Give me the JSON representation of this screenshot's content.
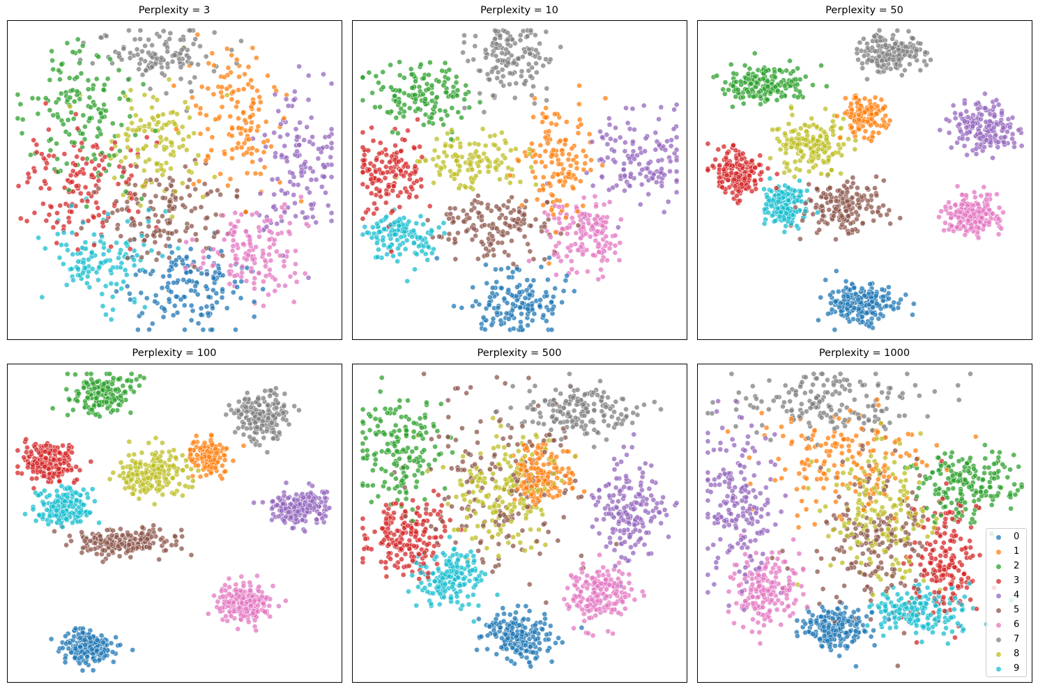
{
  "chart_data": {
    "type": "scatter",
    "figure_title": "",
    "layout": {
      "rows": 2,
      "cols": 3,
      "axes_ticks": false,
      "grid": false
    },
    "legend": {
      "position": "lower right (last panel)",
      "entries": [
        "0",
        "1",
        "2",
        "3",
        "4",
        "5",
        "6",
        "7",
        "8",
        "9"
      ]
    },
    "colors": {
      "0": "#1f77b4",
      "1": "#ff7f0e",
      "2": "#2ca02c",
      "3": "#d62728",
      "4": "#9467bd",
      "5": "#8c564b",
      "6": "#e377c2",
      "7": "#7f7f7f",
      "8": "#bcbd22",
      "9": "#17becf"
    },
    "note": "Cluster centers given in normalized axes coordinates [x, y] with y measured from top; spread is approximate std-dev (fraction of axes); n is approximate point count.",
    "panels": [
      {
        "title": "Perplexity = 3",
        "clusters": [
          {
            "label": "0",
            "center": [
              0.53,
              0.84
            ],
            "spread": [
              0.09,
              0.07
            ],
            "n": 140
          },
          {
            "label": "1",
            "center": [
              0.69,
              0.3
            ],
            "spread": [
              0.07,
              0.11
            ],
            "n": 130
          },
          {
            "label": "2",
            "center": [
              0.22,
              0.3
            ],
            "spread": [
              0.09,
              0.11
            ],
            "n": 140
          },
          {
            "label": "3",
            "center": [
              0.22,
              0.53
            ],
            "spread": [
              0.09,
              0.09
            ],
            "n": 140
          },
          {
            "label": "4",
            "center": [
              0.87,
              0.45
            ],
            "spread": [
              0.07,
              0.13
            ],
            "n": 130
          },
          {
            "label": "5",
            "center": [
              0.47,
              0.6
            ],
            "spread": [
              0.09,
              0.07
            ],
            "n": 140
          },
          {
            "label": "6",
            "center": [
              0.74,
              0.72
            ],
            "spread": [
              0.09,
              0.07
            ],
            "n": 140
          },
          {
            "label": "7",
            "center": [
              0.45,
              0.11
            ],
            "spread": [
              0.09,
              0.05
            ],
            "n": 120
          },
          {
            "label": "8",
            "center": [
              0.45,
              0.38
            ],
            "spread": [
              0.07,
              0.09
            ],
            "n": 120
          },
          {
            "label": "9",
            "center": [
              0.28,
              0.74
            ],
            "spread": [
              0.07,
              0.07
            ],
            "n": 120
          }
        ]
      },
      {
        "title": "Perplexity = 10",
        "clusters": [
          {
            "label": "0",
            "center": [
              0.48,
              0.88
            ],
            "spread": [
              0.07,
              0.05
            ],
            "n": 150
          },
          {
            "label": "1",
            "center": [
              0.61,
              0.43
            ],
            "spread": [
              0.05,
              0.09
            ],
            "n": 130
          },
          {
            "label": "2",
            "center": [
              0.2,
              0.24
            ],
            "spread": [
              0.08,
              0.05
            ],
            "n": 140
          },
          {
            "label": "3",
            "center": [
              0.11,
              0.48
            ],
            "spread": [
              0.06,
              0.07
            ],
            "n": 140
          },
          {
            "label": "4",
            "center": [
              0.86,
              0.43
            ],
            "spread": [
              0.08,
              0.07
            ],
            "n": 130
          },
          {
            "label": "5",
            "center": [
              0.42,
              0.64
            ],
            "spread": [
              0.09,
              0.05
            ],
            "n": 140
          },
          {
            "label": "6",
            "center": [
              0.7,
              0.67
            ],
            "spread": [
              0.06,
              0.06
            ],
            "n": 140
          },
          {
            "label": "7",
            "center": [
              0.47,
              0.12
            ],
            "spread": [
              0.06,
              0.06
            ],
            "n": 140
          },
          {
            "label": "8",
            "center": [
              0.36,
              0.44
            ],
            "spread": [
              0.08,
              0.04
            ],
            "n": 120
          },
          {
            "label": "9",
            "center": [
              0.14,
              0.68
            ],
            "spread": [
              0.06,
              0.04
            ],
            "n": 120
          }
        ]
      },
      {
        "title": "Perplexity = 50",
        "clusters": [
          {
            "label": "0",
            "center": [
              0.49,
              0.89
            ],
            "spread": [
              0.05,
              0.03
            ],
            "n": 200
          },
          {
            "label": "1",
            "center": [
              0.5,
              0.3
            ],
            "spread": [
              0.03,
              0.03
            ],
            "n": 130
          },
          {
            "label": "2",
            "center": [
              0.2,
              0.2
            ],
            "spread": [
              0.06,
              0.03
            ],
            "n": 170
          },
          {
            "label": "3",
            "center": [
              0.12,
              0.48
            ],
            "spread": [
              0.04,
              0.04
            ],
            "n": 180
          },
          {
            "label": "4",
            "center": [
              0.86,
              0.34
            ],
            "spread": [
              0.05,
              0.04
            ],
            "n": 170
          },
          {
            "label": "5",
            "center": [
              0.44,
              0.58
            ],
            "spread": [
              0.06,
              0.04
            ],
            "n": 170
          },
          {
            "label": "6",
            "center": [
              0.82,
              0.61
            ],
            "spread": [
              0.04,
              0.03
            ],
            "n": 190
          },
          {
            "label": "7",
            "center": [
              0.58,
              0.1
            ],
            "spread": [
              0.05,
              0.03
            ],
            "n": 180
          },
          {
            "label": "8",
            "center": [
              0.34,
              0.39
            ],
            "spread": [
              0.05,
              0.04
            ],
            "n": 170
          },
          {
            "label": "9",
            "center": [
              0.26,
              0.58
            ],
            "spread": [
              0.03,
              0.03
            ],
            "n": 170
          }
        ]
      },
      {
        "title": "Perplexity = 100",
        "clusters": [
          {
            "label": "0",
            "center": [
              0.24,
              0.89
            ],
            "spread": [
              0.04,
              0.025
            ],
            "n": 220
          },
          {
            "label": "1",
            "center": [
              0.6,
              0.29
            ],
            "spread": [
              0.03,
              0.03
            ],
            "n": 130
          },
          {
            "label": "2",
            "center": [
              0.29,
              0.09
            ],
            "spread": [
              0.05,
              0.03
            ],
            "n": 180
          },
          {
            "label": "3",
            "center": [
              0.12,
              0.31
            ],
            "spread": [
              0.04,
              0.03
            ],
            "n": 200
          },
          {
            "label": "4",
            "center": [
              0.87,
              0.45
            ],
            "spread": [
              0.05,
              0.03
            ],
            "n": 200
          },
          {
            "label": "5",
            "center": [
              0.35,
              0.56
            ],
            "spread": [
              0.07,
              0.02
            ],
            "n": 200
          },
          {
            "label": "6",
            "center": [
              0.71,
              0.75
            ],
            "spread": [
              0.04,
              0.03
            ],
            "n": 200
          },
          {
            "label": "7",
            "center": [
              0.76,
              0.16
            ],
            "spread": [
              0.04,
              0.04
            ],
            "n": 190
          },
          {
            "label": "8",
            "center": [
              0.43,
              0.34
            ],
            "spread": [
              0.05,
              0.04
            ],
            "n": 180
          },
          {
            "label": "9",
            "center": [
              0.16,
              0.45
            ],
            "spread": [
              0.04,
              0.03
            ],
            "n": 180
          }
        ]
      },
      {
        "title": "Perplexity = 500",
        "clusters": [
          {
            "label": "0",
            "center": [
              0.49,
              0.85
            ],
            "spread": [
              0.05,
              0.04
            ],
            "n": 190
          },
          {
            "label": "1",
            "center": [
              0.57,
              0.35
            ],
            "spread": [
              0.04,
              0.05
            ],
            "n": 160
          },
          {
            "label": "2",
            "center": [
              0.13,
              0.28
            ],
            "spread": [
              0.06,
              0.08
            ],
            "n": 170
          },
          {
            "label": "3",
            "center": [
              0.16,
              0.54
            ],
            "spread": [
              0.06,
              0.06
            ],
            "n": 180
          },
          {
            "label": "4",
            "center": [
              0.83,
              0.45
            ],
            "spread": [
              0.05,
              0.08
            ],
            "n": 170
          },
          {
            "label": "5",
            "center": [
              0.43,
              0.38
            ],
            "spread": [
              0.12,
              0.15
            ],
            "n": 180
          },
          {
            "label": "6",
            "center": [
              0.74,
              0.72
            ],
            "spread": [
              0.05,
              0.05
            ],
            "n": 180
          },
          {
            "label": "7",
            "center": [
              0.68,
              0.14
            ],
            "spread": [
              0.08,
              0.04
            ],
            "n": 170
          },
          {
            "label": "8",
            "center": [
              0.45,
              0.4
            ],
            "spread": [
              0.08,
              0.09
            ],
            "n": 180
          },
          {
            "label": "9",
            "center": [
              0.29,
              0.67
            ],
            "spread": [
              0.05,
              0.04
            ],
            "n": 170
          }
        ]
      },
      {
        "title": "Perplexity = 1000",
        "clusters": [
          {
            "label": "0",
            "center": [
              0.41,
              0.83
            ],
            "spread": [
              0.05,
              0.03
            ],
            "n": 200
          },
          {
            "label": "1",
            "center": [
              0.43,
              0.3
            ],
            "spread": [
              0.13,
              0.08
            ],
            "n": 160
          },
          {
            "label": "2",
            "center": [
              0.8,
              0.38
            ],
            "spread": [
              0.07,
              0.06
            ],
            "n": 180
          },
          {
            "label": "3",
            "center": [
              0.74,
              0.62
            ],
            "spread": [
              0.05,
              0.09
            ],
            "n": 180
          },
          {
            "label": "4",
            "center": [
              0.11,
              0.44
            ],
            "spread": [
              0.06,
              0.12
            ],
            "n": 190
          },
          {
            "label": "5",
            "center": [
              0.53,
              0.55
            ],
            "spread": [
              0.1,
              0.12
            ],
            "n": 180
          },
          {
            "label": "6",
            "center": [
              0.2,
              0.71
            ],
            "spread": [
              0.05,
              0.06
            ],
            "n": 180
          },
          {
            "label": "7",
            "center": [
              0.4,
              0.12
            ],
            "spread": [
              0.14,
              0.05
            ],
            "n": 170
          },
          {
            "label": "8",
            "center": [
              0.54,
              0.49
            ],
            "spread": [
              0.09,
              0.11
            ],
            "n": 180
          },
          {
            "label": "9",
            "center": [
              0.67,
              0.78
            ],
            "spread": [
              0.08,
              0.04
            ],
            "n": 170
          }
        ]
      }
    ]
  },
  "panels": [
    {
      "title": "Perplexity = 3"
    },
    {
      "title": "Perplexity = 10"
    },
    {
      "title": "Perplexity = 50"
    },
    {
      "title": "Perplexity = 100"
    },
    {
      "title": "Perplexity = 500"
    },
    {
      "title": "Perplexity = 1000"
    }
  ],
  "legend": {
    "items": [
      {
        "label": "0"
      },
      {
        "label": "1"
      },
      {
        "label": "2"
      },
      {
        "label": "3"
      },
      {
        "label": "4"
      },
      {
        "label": "5"
      },
      {
        "label": "6"
      },
      {
        "label": "7"
      },
      {
        "label": "8"
      },
      {
        "label": "9"
      }
    ]
  }
}
